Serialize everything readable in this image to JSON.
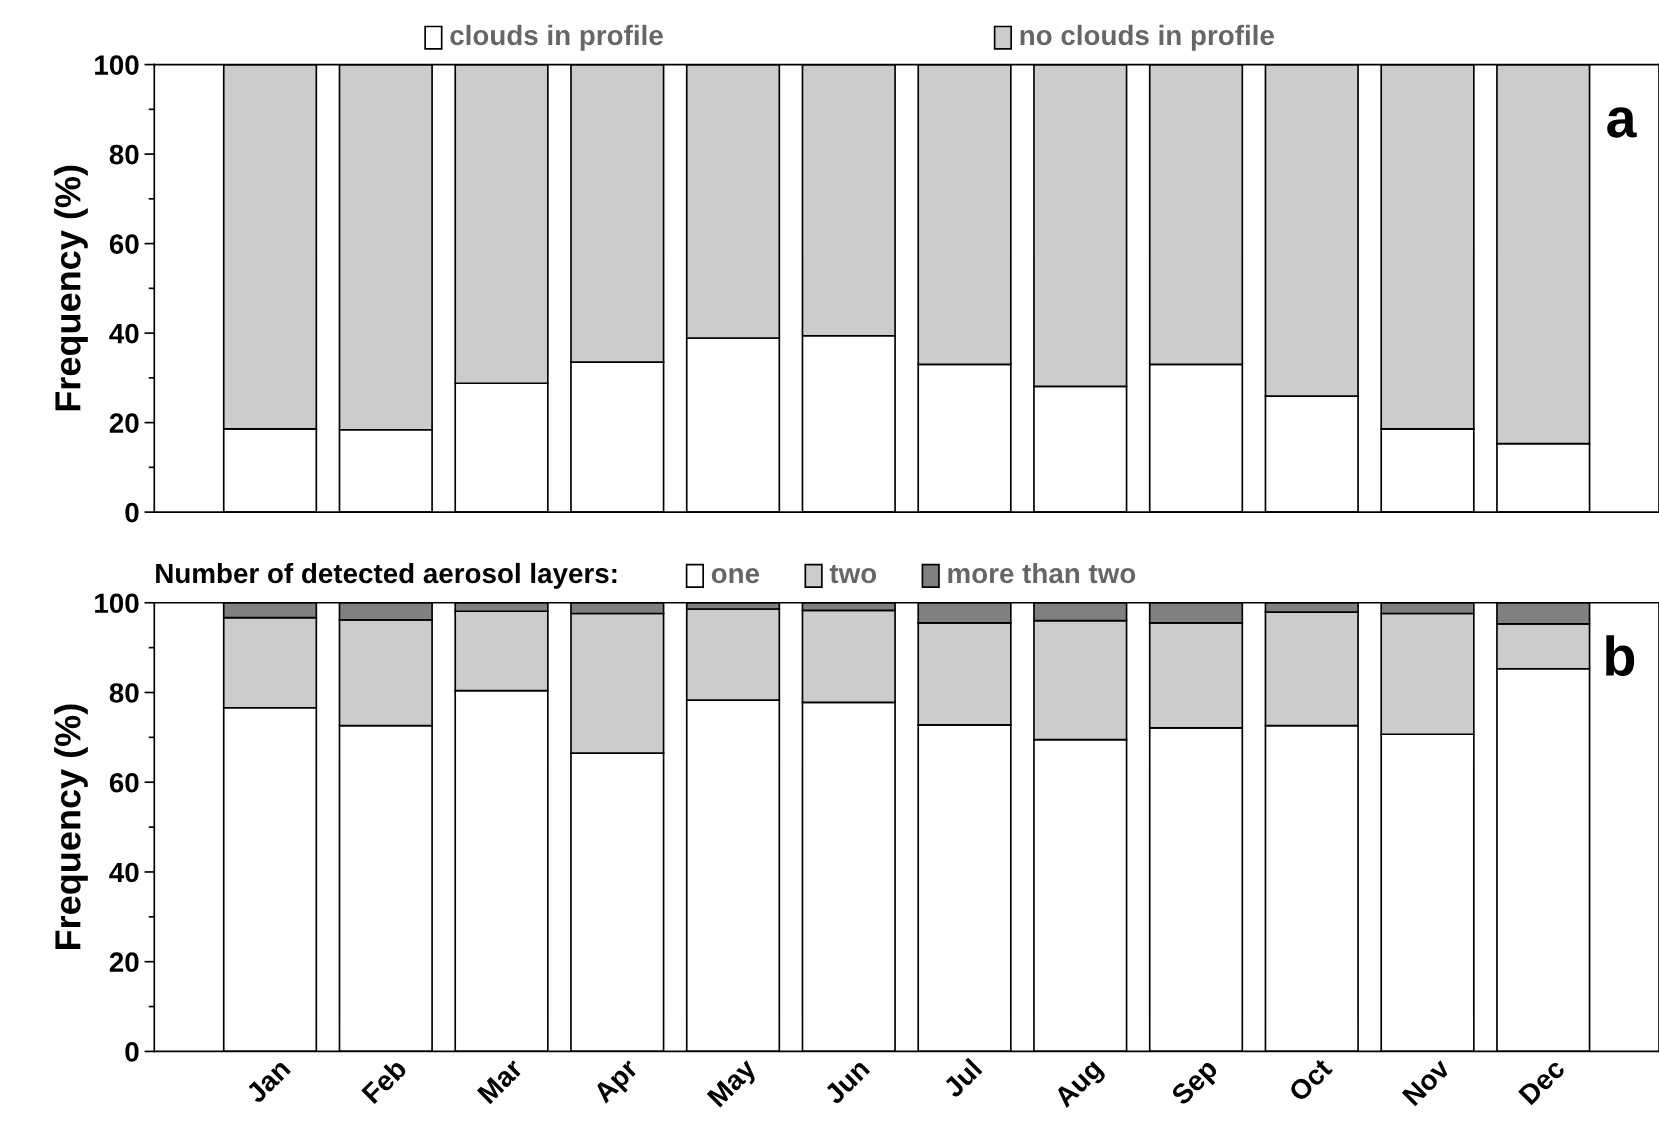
{
  "chart_data": [
    {
      "type": "bar",
      "stacked": true,
      "ylabel": "Frequency (%)",
      "categories": [
        null,
        null,
        null,
        null,
        null,
        null,
        null,
        null,
        null,
        null,
        null,
        null
      ],
      "tick_labels": "y",
      "ylim": [
        0,
        100
      ],
      "yticks": [
        0,
        20,
        40,
        60,
        80,
        100
      ],
      "legend": "top",
      "annotations": [
        "a"
      ],
      "series": [
        {
          "name": "clouds in profile",
          "color": "#ffffff",
          "values": [
            18.6,
            18.4,
            28.8,
            33.5,
            38.9,
            39.4,
            33.0,
            28.1,
            33.0,
            25.9,
            18.6,
            15.3
          ]
        },
        {
          "name": "no clouds in profile",
          "color": "#cccccc",
          "values": [
            81.4,
            81.6,
            71.2,
            66.5,
            61.1,
            60.6,
            67.0,
            71.9,
            67.0,
            74.1,
            81.4,
            84.7
          ]
        }
      ]
    },
    {
      "type": "bar",
      "stacked": true,
      "ylabel": "Frequency (%)",
      "categories": [
        "Jan",
        "Feb",
        "Mar",
        "Apr",
        "May",
        "Jun",
        "Jul",
        "Aug",
        "Sep",
        "Oct",
        "Nov",
        "Dec"
      ],
      "ylim": [
        0,
        100
      ],
      "yticks": [
        0,
        20,
        40,
        60,
        80,
        100
      ],
      "legend": "top",
      "legend_title": "Number of detected aerosol layers:",
      "annotations": [
        "b"
      ],
      "series": [
        {
          "name": "one",
          "color": "#ffffff",
          "values": [
            76.6,
            72.6,
            80.4,
            66.5,
            78.3,
            77.8,
            72.8,
            69.5,
            72.1,
            72.6,
            70.7,
            85.3
          ]
        },
        {
          "name": "two",
          "color": "#cccccc",
          "values": [
            20.1,
            23.6,
            17.7,
            31.1,
            20.3,
            20.5,
            22.7,
            26.5,
            23.4,
            25.3,
            26.9,
            10.0
          ]
        },
        {
          "name": "more than two",
          "color": "#808080",
          "values": [
            3.3,
            3.8,
            1.9,
            2.4,
            1.4,
            1.7,
            4.5,
            4.0,
            4.5,
            2.1,
            2.4,
            4.7
          ]
        }
      ]
    }
  ]
}
